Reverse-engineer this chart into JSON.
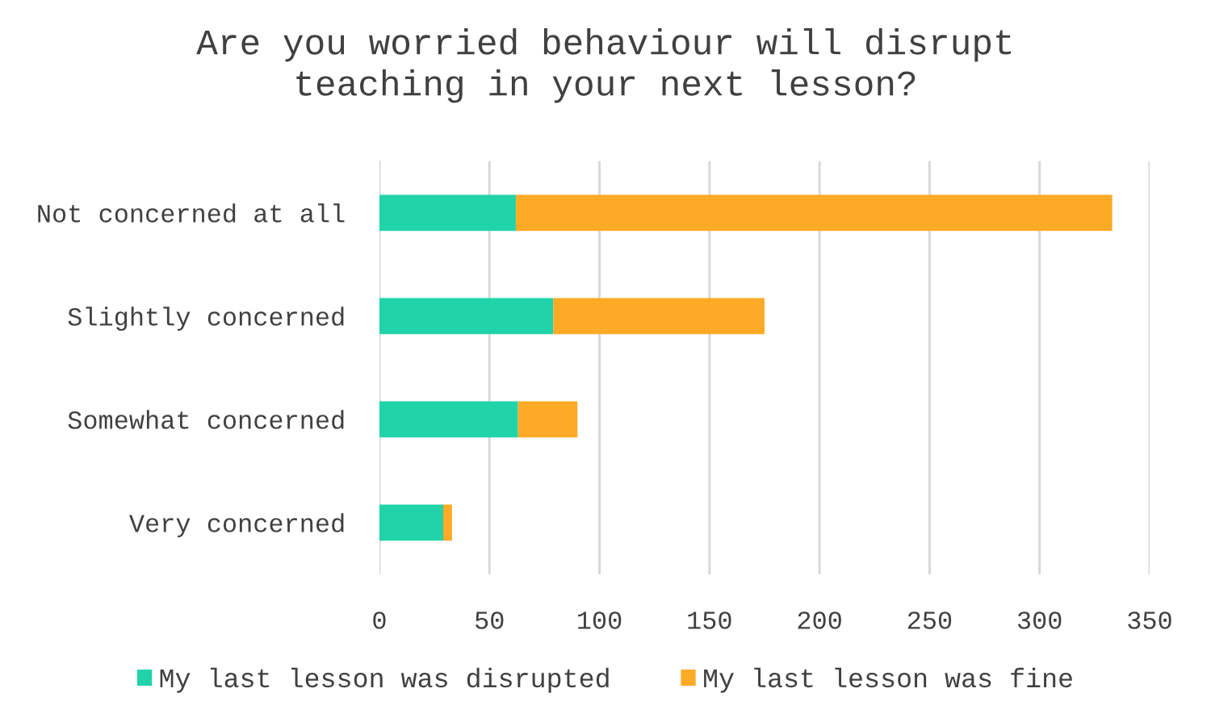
{
  "chart_data": {
    "type": "bar",
    "orientation": "horizontal",
    "stacked": true,
    "title": "Are you worried behaviour will disrupt\nteaching in your next lesson?",
    "categories": [
      "Not concerned at all",
      "Slightly concerned",
      "Somewhat concerned",
      "Very concerned"
    ],
    "series": [
      {
        "name": "My last lesson was disrupted",
        "color": "#21d3a9",
        "values": [
          62,
          79,
          63,
          29
        ]
      },
      {
        "name": "My last lesson was fine",
        "color": "#fdaa26",
        "values": [
          271,
          96,
          27,
          4
        ]
      }
    ],
    "xlim": [
      0,
      350
    ],
    "xticks": [
      0,
      50,
      100,
      150,
      200,
      250,
      300,
      350
    ],
    "grid": "x",
    "legend": "bottom"
  }
}
